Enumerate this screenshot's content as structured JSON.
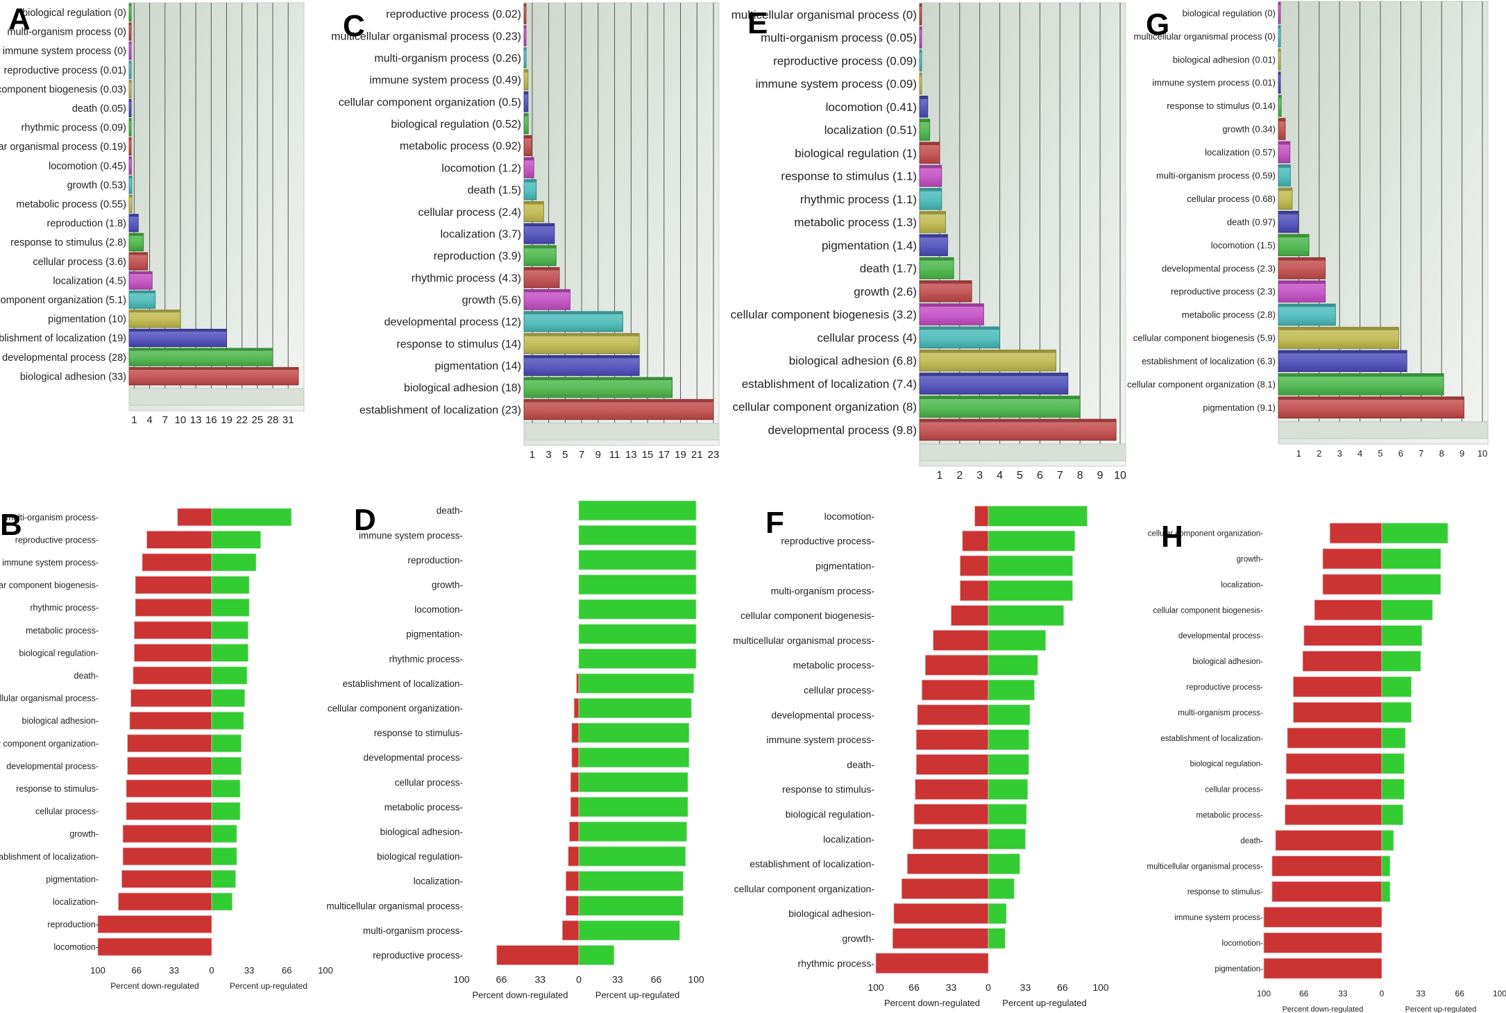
{
  "figure": {
    "panel_letters": [
      "A",
      "B",
      "C",
      "D",
      "E",
      "F",
      "G",
      "H"
    ],
    "colors": {
      "bar3d_cycle": [
        "#c04848",
        "#46b446",
        "#4a4ab8",
        "#bdb84a",
        "#46b8b8",
        "#c24ac2"
      ],
      "down_regulated": "#cc3333",
      "up_regulated": "#33cc33",
      "plot_bg": "#dfe5df"
    }
  },
  "chart_data": [
    {
      "panel": "A",
      "type": "bar",
      "orientation": "horizontal",
      "style": "3d",
      "categories": [
        "biological regulation",
        "multi-organism process",
        "immune system process",
        "reproductive process",
        "cellular component biogenesis",
        "death",
        "rhythmic process",
        "multicellular organismal process",
        "locomotion",
        "growth",
        "metabolic process",
        "reproduction",
        "response to stimulus",
        "cellular process",
        "localization",
        "cellular component organization",
        "pigmentation",
        "establishment of localization",
        "developmental process",
        "biological adhesion"
      ],
      "values": [
        0,
        0,
        0,
        0.01,
        0.03,
        0.05,
        0.09,
        0.19,
        0.45,
        0.53,
        0.55,
        1.8,
        2.8,
        3.6,
        4.5,
        5.1,
        10,
        19,
        28,
        33
      ],
      "value_labels": [
        "(0)",
        "(0)",
        "(0)",
        "(0.01)",
        "(0.03)",
        "(0.05)",
        "(0.09)",
        "(0.19)",
        "(0.45)",
        "(0.53)",
        "(0.55)",
        "(1.8)",
        "(2.8)",
        "(3.6)",
        "(4.5)",
        "(5.1)",
        "(10)",
        "(19)",
        "(28)",
        "(33)"
      ],
      "xticks": [
        "1",
        "4",
        "7",
        "10",
        "13",
        "16",
        "19",
        "22",
        "25",
        "28",
        "31"
      ],
      "xtick_values": [
        1,
        4,
        7,
        10,
        13,
        16,
        19,
        22,
        25,
        28,
        31
      ],
      "xlim": [
        0,
        33
      ],
      "title": "",
      "xlabel": "",
      "ylabel": "",
      "grid": true
    },
    {
      "panel": "B",
      "type": "bar",
      "orientation": "horizontal",
      "style": "diverging",
      "categories": [
        "multi-organism process",
        "reproductive process",
        "immune system process",
        "cellular component biogenesis",
        "rhythmic process",
        "metabolic process",
        "biological regulation",
        "death",
        "multicellular organismal process",
        "biological adhesion",
        "cellular component organization",
        "developmental process",
        "response to stimulus",
        "cellular process",
        "growth",
        "establishment of localization",
        "pigmentation",
        "localization",
        "reproduction",
        "locomotion"
      ],
      "series": [
        {
          "name": "Percent down-regulated",
          "values": [
            30,
            57,
            61,
            67,
            67,
            68,
            68,
            69,
            71,
            72,
            74,
            74,
            75,
            75,
            78,
            78,
            79,
            82,
            100,
            100
          ]
        },
        {
          "name": "Percent up-regulated",
          "values": [
            70,
            43,
            39,
            33,
            33,
            32,
            32,
            31,
            29,
            28,
            26,
            26,
            25,
            25,
            22,
            22,
            21,
            18,
            0,
            0
          ]
        }
      ],
      "xticks_left": [
        "100",
        "66",
        "33",
        "0"
      ],
      "xticks_right": [
        "33",
        "66",
        "100"
      ],
      "xlabel_left": "Percent down-regulated",
      "xlabel_right": "Percent up-regulated",
      "xlim": [
        -100,
        100
      ],
      "grid": false
    },
    {
      "panel": "C",
      "type": "bar",
      "orientation": "horizontal",
      "style": "3d",
      "categories": [
        "reproductive process",
        "multicellular organismal process",
        "multi-organism process",
        "immune system process",
        "cellular component organization",
        "biological regulation",
        "metabolic process",
        "locomotion",
        "death",
        "cellular process",
        "localization",
        "reproduction",
        "rhythmic process",
        "growth",
        "developmental process",
        "response to stimulus",
        "pigmentation",
        "biological adhesion",
        "establishment of localization"
      ],
      "values": [
        0.02,
        0.23,
        0.26,
        0.49,
        0.5,
        0.52,
        0.92,
        1.2,
        1.5,
        2.4,
        3.7,
        3.9,
        4.3,
        5.6,
        12,
        14,
        14,
        18,
        23
      ],
      "value_labels": [
        "(0.02)",
        "(0.23)",
        "(0.26)",
        "(0.49)",
        "(0.5)",
        "(0.52)",
        "(0.92)",
        "(1.2)",
        "(1.5)",
        "(2.4)",
        "(3.7)",
        "(3.9)",
        "(4.3)",
        "(5.6)",
        "(12)",
        "(14)",
        "(14)",
        "(18)",
        "(23)"
      ],
      "xticks": [
        "1",
        "3",
        "5",
        "7",
        "9",
        "11",
        "13",
        "15",
        "17",
        "19",
        "21",
        "23"
      ],
      "xtick_values": [
        1,
        3,
        5,
        7,
        9,
        11,
        13,
        15,
        17,
        19,
        21,
        23
      ],
      "xlim": [
        0,
        23
      ],
      "title": "",
      "xlabel": "",
      "ylabel": "",
      "grid": true
    },
    {
      "panel": "D",
      "type": "bar",
      "orientation": "horizontal",
      "style": "diverging",
      "categories": [
        "death",
        "immune system process",
        "reproduction",
        "growth",
        "locomotion",
        "pigmentation",
        "rhythmic process",
        "establishment of localization",
        "cellular component organization",
        "response to stimulus",
        "developmental process",
        "cellular process",
        "metabolic process",
        "biological adhesion",
        "biological regulation",
        "localization",
        "multicellular organismal process",
        "multi-organism process",
        "reproductive process"
      ],
      "series": [
        {
          "name": "Percent down-regulated",
          "values": [
            0,
            0,
            0,
            0,
            0,
            0,
            0,
            2,
            4,
            6,
            6,
            7,
            7,
            8,
            9,
            11,
            11,
            14,
            70
          ]
        },
        {
          "name": "Percent up-regulated",
          "values": [
            100,
            100,
            100,
            100,
            100,
            100,
            100,
            98,
            96,
            94,
            94,
            93,
            93,
            92,
            91,
            89,
            89,
            86,
            30
          ]
        }
      ],
      "xticks_left": [
        "100",
        "66",
        "33",
        "0"
      ],
      "xticks_right": [
        "33",
        "66",
        "100"
      ],
      "xlabel_left": "Percent down-regulated",
      "xlabel_right": "Percent up-regulated",
      "xlim": [
        -100,
        100
      ],
      "grid": false
    },
    {
      "panel": "E",
      "type": "bar",
      "orientation": "horizontal",
      "style": "3d",
      "categories": [
        "multicellular organismal process",
        "multi-organism process",
        "reproductive process",
        "immune system process",
        "locomotion",
        "localization",
        "biological regulation",
        "response to stimulus",
        "rhythmic process",
        "metabolic process",
        "pigmentation",
        "death",
        "growth",
        "cellular component biogenesis",
        "cellular process",
        "biological adhesion",
        "establishment of localization",
        "cellular component organization",
        "developmental process"
      ],
      "values": [
        0,
        0.05,
        0.09,
        0.09,
        0.41,
        0.51,
        1,
        1.1,
        1.1,
        1.3,
        1.4,
        1.7,
        2.6,
        3.2,
        4,
        6.8,
        7.4,
        8,
        9.8
      ],
      "value_labels": [
        "(0)",
        "(0.05)",
        "(0.09)",
        "(0.09)",
        "(0.41)",
        "(0.51)",
        "(1)",
        "(1.1)",
        "(1.1)",
        "(1.3)",
        "(1.4)",
        "(1.7)",
        "(2.6)",
        "(3.2)",
        "(4)",
        "(6.8)",
        "(7.4)",
        "(8)",
        "(9.8)"
      ],
      "xticks": [
        "1",
        "2",
        "3",
        "4",
        "5",
        "6",
        "7",
        "8",
        "9",
        "10"
      ],
      "xtick_values": [
        1,
        2,
        3,
        4,
        5,
        6,
        7,
        8,
        9,
        10
      ],
      "xlim": [
        0,
        10
      ],
      "title": "",
      "xlabel": "",
      "ylabel": "",
      "grid": true
    },
    {
      "panel": "F",
      "type": "bar",
      "orientation": "horizontal",
      "style": "diverging",
      "categories": [
        "locomotion",
        "reproductive process",
        "pigmentation",
        "multi-organism process",
        "cellular component biogenesis",
        "multicellular organismal process",
        "metabolic process",
        "cellular process",
        "developmental process",
        "immune system process",
        "death",
        "response to stimulus",
        "biological regulation",
        "localization",
        "establishment of localization",
        "cellular component organization",
        "biological adhesion",
        "growth",
        "rhythmic process"
      ],
      "series": [
        {
          "name": "Percent down-regulated",
          "values": [
            12,
            23,
            25,
            25,
            33,
            49,
            56,
            59,
            63,
            64,
            64,
            65,
            66,
            67,
            72,
            77,
            84,
            85,
            100
          ]
        },
        {
          "name": "Percent up-regulated",
          "values": [
            88,
            77,
            75,
            75,
            67,
            51,
            44,
            41,
            37,
            36,
            36,
            35,
            34,
            33,
            28,
            23,
            16,
            15,
            0
          ]
        }
      ],
      "xticks_left": [
        "100",
        "66",
        "33",
        "0"
      ],
      "xticks_right": [
        "33",
        "66",
        "100"
      ],
      "xlabel_left": "Percent down-regulated",
      "xlabel_right": "Percent up-regulated",
      "xlim": [
        -100,
        100
      ],
      "grid": false
    },
    {
      "panel": "G",
      "type": "bar",
      "orientation": "horizontal",
      "style": "3d",
      "categories": [
        "biological regulation",
        "multicellular organismal process",
        "biological adhesion",
        "immune system process",
        "response to stimulus",
        "growth",
        "localization",
        "multi-organism process",
        "cellular process",
        "death",
        "locomotion",
        "developmental process",
        "reproductive process",
        "metabolic process",
        "cellular component biogenesis",
        "establishment of localization",
        "cellular component organization",
        "pigmentation"
      ],
      "values": [
        0,
        0,
        0.01,
        0.01,
        0.14,
        0.34,
        0.57,
        0.59,
        0.68,
        0.97,
        1.5,
        2.3,
        2.3,
        2.8,
        5.9,
        6.3,
        8.1,
        9.1
      ],
      "value_labels": [
        "(0)",
        "(0)",
        "(0.01)",
        "(0.01)",
        "(0.14)",
        "(0.34)",
        "(0.57)",
        "(0.59)",
        "(0.68)",
        "(0.97)",
        "(1.5)",
        "(2.3)",
        "(2.3)",
        "(2.8)",
        "(5.9)",
        "(6.3)",
        "(8.1)",
        "(9.1)"
      ],
      "xticks": [
        "1",
        "2",
        "3",
        "4",
        "5",
        "6",
        "7",
        "8",
        "9",
        "10"
      ],
      "xtick_values": [
        1,
        2,
        3,
        4,
        5,
        6,
        7,
        8,
        9,
        10
      ],
      "xlim": [
        0,
        10
      ],
      "title": "",
      "xlabel": "",
      "ylabel": "",
      "grid": true
    },
    {
      "panel": "H",
      "type": "bar",
      "orientation": "horizontal",
      "style": "diverging",
      "categories": [
        "cellular component organization",
        "growth",
        "localization",
        "cellular component biogenesis",
        "developmental process",
        "biological adhesion",
        "reproductive process",
        "multi-organism process",
        "establishment of localization",
        "biological regulation",
        "cellular process",
        "metabolic process",
        "death",
        "multicellular organismal process",
        "response to stimulus",
        "immune system process",
        "locomotion",
        "pigmentation"
      ],
      "series": [
        {
          "name": "Percent down-regulated",
          "values": [
            44,
            50,
            50,
            57,
            66,
            67,
            75,
            75,
            80,
            81,
            81,
            82,
            90,
            93,
            93,
            100,
            100,
            100
          ]
        },
        {
          "name": "Percent up-regulated",
          "values": [
            56,
            50,
            50,
            43,
            34,
            33,
            25,
            25,
            20,
            19,
            19,
            18,
            10,
            7,
            7,
            0,
            0,
            0
          ]
        }
      ],
      "xticks_left": [
        "100",
        "66",
        "33",
        "0"
      ],
      "xticks_right": [
        "33",
        "66",
        "100"
      ],
      "xlabel_left": "Percent down-regulated",
      "xlabel_right": "Percent up-regulated",
      "xlim": [
        -100,
        100
      ],
      "grid": false
    }
  ]
}
